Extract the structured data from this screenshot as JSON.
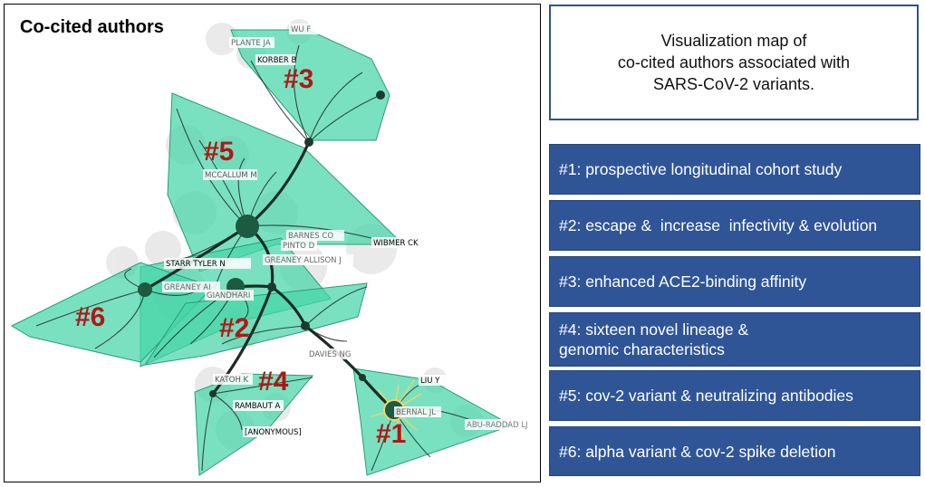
{
  "map": {
    "title": "Co-cited authors",
    "authors": [
      "WU F",
      "PLANTE JA",
      "KORBER B",
      "MCCALLUM M",
      "BARNES CO",
      "PINTO D",
      "WIBMER CK",
      "GREANEY ALLISON J",
      "STARR TYLER N",
      "GREANEY AJ",
      "GIANDHARI",
      "DAVIES NG",
      "KATOH K",
      "RAMBAUT A",
      "[ANONYMOUS]",
      "LIU Y",
      "BERNAL JL",
      "ABU-RADDAD LJ"
    ],
    "clusters": [
      "#1",
      "#2",
      "#3",
      "#4",
      "#5",
      "#6"
    ],
    "colors": {
      "hull": "#45d6a8",
      "hull_edge": "#2a9c7a",
      "link": "#22302a",
      "cluster_label": "#b01818",
      "halo": "#f2d36a"
    }
  },
  "caption": "Visualization map of\nco-cited authors associated with\nSARS-CoV-2 variants.",
  "legend": [
    "#1: prospective longitudinal cohort study",
    "#2: escape &  increase  infectivity & evolution",
    "#3: enhanced ACE2-binding affinity",
    "#4: sixteen novel lineage &\ngenomic characteristics",
    "#5: cov-2 variant & neutralizing antibodies",
    "#6: alpha variant & cov-2 spike deletion"
  ],
  "colors": {
    "legend_bg": "#2f5597",
    "caption_border": "#2f528f"
  }
}
